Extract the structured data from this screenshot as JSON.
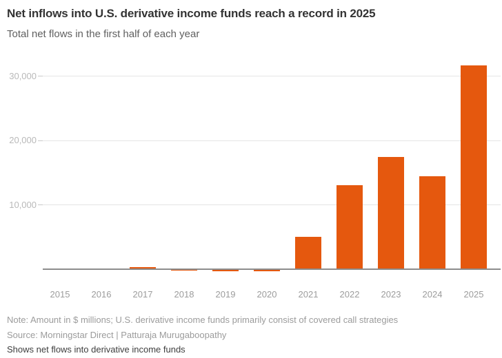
{
  "header": {
    "title": "Net inflows into U.S. derivative income funds reach a record in 2025",
    "subtitle": "Total net flows in the first half of each year"
  },
  "chart_data": {
    "type": "bar",
    "title": "Net inflows into U.S. derivative income funds reach a record in 2025",
    "subtitle": "Total net flows in the first half of each year",
    "unit": "$ millions",
    "categories": [
      "2015",
      "2016",
      "2017",
      "2018",
      "2019",
      "2020",
      "2021",
      "2022",
      "2023",
      "2024",
      "2025"
    ],
    "values": [
      60,
      0,
      300,
      -250,
      -320,
      -300,
      5000,
      13000,
      17400,
      14400,
      31700
    ],
    "xlabel": "",
    "ylabel": "",
    "ylim": [
      -500,
      32300
    ],
    "yticks": [
      10000,
      20000,
      30000
    ],
    "ytick_labels": [
      "10,000",
      "20,000",
      "30,000"
    ],
    "grid": true,
    "legend": "none",
    "bar_color": "#e5580e"
  },
  "footer": {
    "note": "Note: Amount in $ millions; U.S. derivative income funds primarily consist of covered call strategies",
    "source": "Source: Morningstar Direct | Patturaja Murugaboopathy",
    "caption": "Shows net flows into derivative income funds"
  },
  "colors": {
    "accent_bar": "#e5580e",
    "title_text": "#333333",
    "subtitle_text": "#5f5f5f",
    "axis_label_text": "#9c9c9c",
    "ytick_text": "#b9b9b9",
    "gridline": "#e4e4e4",
    "axis_line": "#8c8c8c",
    "note_text": "#9b9b9b",
    "caption_text": "#3d3d3d",
    "background": "#ffffff"
  }
}
